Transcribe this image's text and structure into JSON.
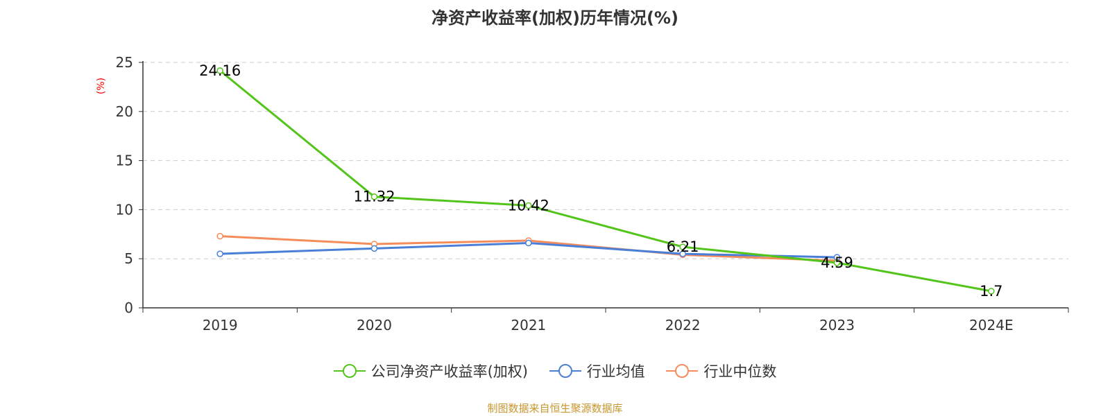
{
  "chart_data": {
    "type": "line",
    "title": "净资产收益率(加权)历年情况(%)",
    "ylabel": "(%)",
    "xlabel": "",
    "categories": [
      "2019",
      "2020",
      "2021",
      "2022",
      "2023",
      "2024E"
    ],
    "ylim": [
      0,
      25
    ],
    "yticks": [
      0,
      5,
      10,
      15,
      20,
      25
    ],
    "grid": true,
    "legend_position": "bottom",
    "series": [
      {
        "name": "公司净资产收益率(加权)",
        "color": "#52c41a",
        "values": [
          24.16,
          11.32,
          10.42,
          6.21,
          4.59,
          1.7
        ],
        "labels": [
          "24.16",
          "11.32",
          "10.42",
          "6.21",
          "4.59",
          "1.7"
        ]
      },
      {
        "name": "行业均值",
        "color": "#4a7fd8",
        "values": [
          5.5,
          6.05,
          6.6,
          5.5,
          5.15,
          null
        ]
      },
      {
        "name": "行业中位数",
        "color": "#f58c5b",
        "values": [
          7.3,
          6.5,
          6.85,
          5.4,
          4.8,
          null
        ]
      }
    ]
  },
  "source_text": "制图数据来自恒生聚源数据库",
  "colors": {
    "ylabel": "#ff0000",
    "source": "#c8962e",
    "axis": "#333333",
    "grid": "#cccccc"
  }
}
